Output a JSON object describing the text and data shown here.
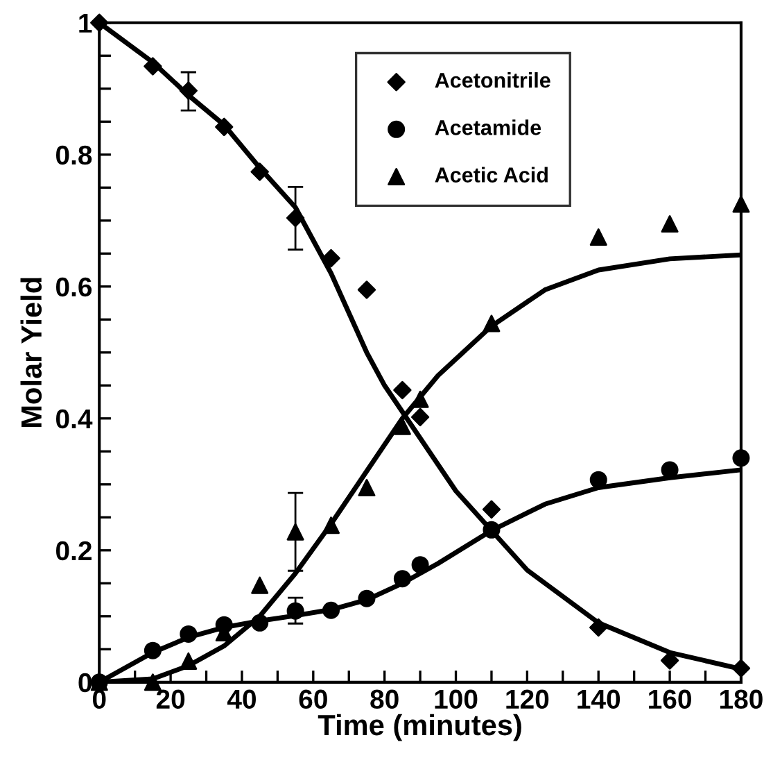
{
  "chart_data": {
    "type": "scatter",
    "xlabel": "Time (minutes)",
    "ylabel": "Molar Yield",
    "xlim": [
      0,
      180
    ],
    "ylim": [
      0,
      1
    ],
    "xticks": [
      0,
      {
        "value": 10,
        "label": null
      },
      20,
      {
        "value": 30,
        "label": null
      },
      40,
      {
        "value": 50,
        "label": null
      },
      60,
      {
        "value": 70,
        "label": null
      },
      80,
      {
        "value": 90,
        "label": null
      },
      100,
      {
        "value": 110,
        "label": null
      },
      120,
      {
        "value": 130,
        "label": null
      },
      140,
      {
        "value": 150,
        "label": null
      },
      160,
      {
        "value": 170,
        "label": null
      },
      180
    ],
    "yticks": [
      0,
      {
        "value": 0.05,
        "label": null
      },
      {
        "value": 0.1,
        "label": null
      },
      {
        "value": 0.15,
        "label": null
      },
      0.2,
      {
        "value": 0.25,
        "label": null
      },
      {
        "value": 0.3,
        "label": null
      },
      {
        "value": 0.35,
        "label": null
      },
      0.4,
      {
        "value": 0.45,
        "label": null
      },
      {
        "value": 0.5,
        "label": null
      },
      {
        "value": 0.55,
        "label": null
      },
      0.6,
      {
        "value": 0.65,
        "label": null
      },
      {
        "value": 0.7,
        "label": null
      },
      {
        "value": 0.75,
        "label": null
      },
      0.8,
      {
        "value": 0.85,
        "label": null
      },
      {
        "value": 0.9,
        "label": null
      },
      {
        "value": 0.95,
        "label": null
      },
      1
    ],
    "grid": false,
    "legend": "top right",
    "series": [
      {
        "name": "Acetonitrile",
        "marker": "diamond",
        "color": "#000000",
        "x": [
          0,
          15,
          25,
          35,
          45,
          55,
          65,
          75,
          85,
          90,
          110,
          140,
          160,
          180
        ],
        "values": [
          1.0,
          0.934,
          0.897,
          0.842,
          0.774,
          0.704,
          0.643,
          0.595,
          0.443,
          0.402,
          0.262,
          0.083,
          0.033,
          0.021
        ],
        "errors": [
          null,
          null,
          [
            0.867,
            0.925
          ],
          null,
          null,
          [
            0.656,
            0.751
          ],
          null,
          null,
          null,
          null,
          null,
          null,
          null,
          null
        ]
      },
      {
        "name": "Acetamide",
        "marker": "circle",
        "color": "#000000",
        "x": [
          0,
          15,
          25,
          35,
          45,
          55,
          65,
          75,
          85,
          90,
          110,
          140,
          160,
          180
        ],
        "values": [
          0,
          0.048,
          0.073,
          0.087,
          0.09,
          0.108,
          0.109,
          0.127,
          0.157,
          0.178,
          0.231,
          0.307,
          0.322,
          0.34
        ],
        "errors": [
          null,
          null,
          null,
          null,
          null,
          [
            0.089,
            0.128
          ],
          null,
          null,
          null,
          null,
          null,
          null,
          null,
          null
        ]
      },
      {
        "name": "Acetic Acid",
        "marker": "triangle",
        "color": "#000000",
        "x": [
          0,
          15,
          25,
          35,
          45,
          55,
          65,
          75,
          85,
          90,
          110,
          140,
          160,
          180
        ],
        "values": [
          0,
          0.0,
          0.032,
          0.075,
          0.147,
          0.228,
          0.238,
          0.295,
          0.388,
          0.429,
          0.544,
          0.675,
          0.695,
          0.725
        ],
        "errors": [
          null,
          null,
          null,
          null,
          null,
          [
            0.169,
            0.287
          ],
          null,
          null,
          null,
          null,
          null,
          null,
          null,
          null
        ]
      },
      {
        "type": "line",
        "marker": "none",
        "line_style": "solid",
        "color": "#000000",
        "x": [
          0,
          15,
          25,
          35,
          45,
          55,
          65,
          75,
          80,
          85,
          90,
          100,
          110,
          120,
          140,
          160,
          180
        ],
        "values": [
          1.0,
          0.94,
          0.89,
          0.845,
          0.78,
          0.72,
          0.62,
          0.5,
          0.45,
          0.41,
          0.37,
          0.29,
          0.23,
          0.17,
          0.09,
          0.045,
          0.02
        ]
      },
      {
        "type": "line",
        "marker": "none",
        "line_style": "solid",
        "color": "#000000",
        "x": [
          0,
          15,
          25,
          35,
          45,
          55,
          65,
          75,
          85,
          95,
          110,
          125,
          140,
          160,
          180
        ],
        "values": [
          0,
          0.045,
          0.068,
          0.083,
          0.093,
          0.101,
          0.11,
          0.125,
          0.15,
          0.18,
          0.23,
          0.27,
          0.295,
          0.31,
          0.322
        ]
      },
      {
        "type": "line",
        "marker": "none",
        "line_style": "solid",
        "color": "#000000",
        "x": [
          0,
          15,
          25,
          35,
          45,
          55,
          65,
          75,
          85,
          95,
          110,
          125,
          140,
          160,
          180
        ],
        "values": [
          0,
          0.005,
          0.025,
          0.055,
          0.1,
          0.165,
          0.24,
          0.32,
          0.4,
          0.465,
          0.54,
          0.595,
          0.625,
          0.642,
          0.648
        ]
      }
    ]
  }
}
